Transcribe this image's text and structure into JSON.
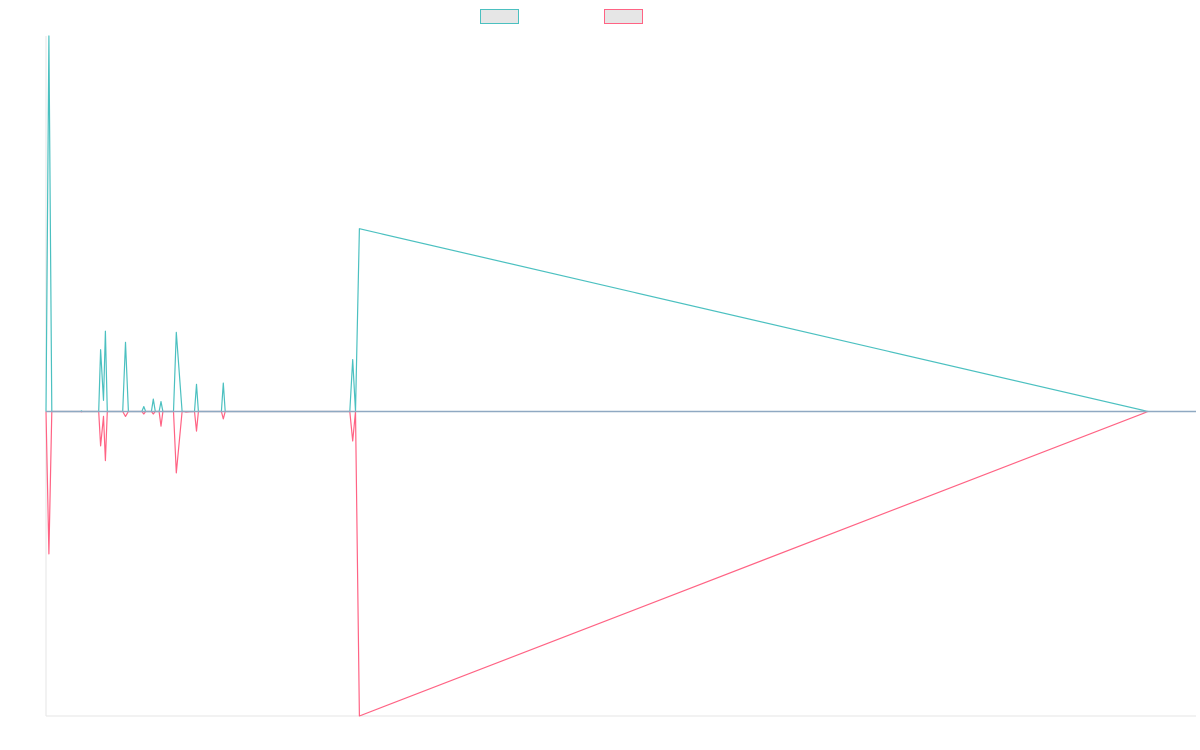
{
  "colors": {
    "series_a": "#4bc0c0",
    "series_b": "#ff6384",
    "zero_line": "#8fa9c2",
    "axis": "#e6e6e6",
    "legend_fill": "#e6e6e6"
  },
  "legend": {
    "items": [
      {
        "label": "",
        "series": 0
      },
      {
        "label": "",
        "series": 1
      }
    ]
  },
  "chart_data": {
    "type": "line",
    "title": "",
    "xlabel": "",
    "ylabel": "",
    "legend_position": "top-center",
    "grid": false,
    "ylim": [
      -1.24,
      1.24
    ],
    "xlim": [
      0,
      1200
    ],
    "series": [
      {
        "color": "#4bc0c0",
        "x": [
          0,
          3,
          6,
          36,
          37,
          38,
          55,
          57,
          60,
          62,
          64,
          80,
          83,
          86,
          100,
          102,
          104,
          110,
          112,
          114,
          118,
          120,
          122,
          133,
          136,
          142,
          144,
          146,
          155,
          157,
          159,
          183,
          185,
          187,
          317,
          320,
          323,
          327,
          1150
        ],
        "y": [
          0,
          1.52,
          0,
          0,
          0.003,
          0,
          0,
          0.25,
          0.045,
          0.325,
          0,
          0,
          0.28,
          0,
          0,
          0.02,
          0,
          0,
          0.05,
          0,
          0,
          0.04,
          0,
          0,
          0.32,
          0,
          0,
          0,
          0,
          0.11,
          0,
          0,
          0.115,
          0,
          0,
          0.21,
          0,
          0.74,
          0
        ]
      },
      {
        "color": "#ff6384",
        "x": [
          0,
          3,
          6,
          36,
          37,
          38,
          55,
          57,
          60,
          62,
          64,
          80,
          83,
          86,
          100,
          102,
          104,
          110,
          112,
          114,
          118,
          120,
          122,
          133,
          136,
          142,
          144,
          146,
          155,
          157,
          159,
          183,
          185,
          187,
          317,
          320,
          323,
          327,
          1150
        ],
        "y": [
          0,
          -0.58,
          0,
          0,
          -0.002,
          0,
          0,
          -0.14,
          -0.02,
          -0.2,
          0,
          0,
          -0.02,
          0,
          0,
          -0.01,
          0,
          0,
          -0.01,
          0,
          0,
          -0.06,
          0,
          0,
          -0.25,
          0,
          0,
          -0.003,
          0,
          -0.08,
          0,
          0,
          -0.03,
          0,
          0,
          -0.12,
          0,
          -1.24,
          0
        ]
      }
    ]
  }
}
